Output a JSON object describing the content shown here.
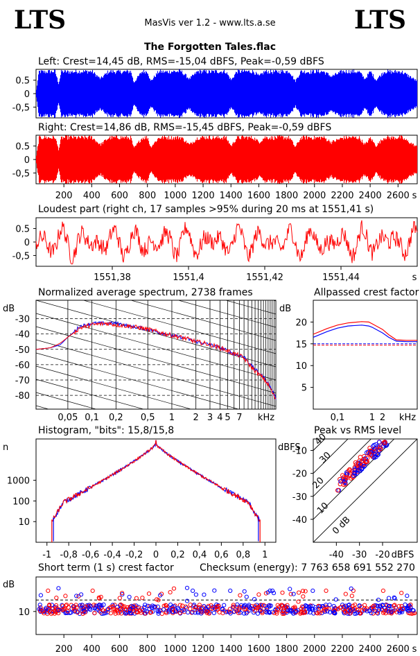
{
  "header": {
    "logo_left": "LTS",
    "logo_right": "LTS",
    "app_version": "MasVis ver 1.2 - www.lts.a.se",
    "file_title": "The Forgotten Tales.flac"
  },
  "colors": {
    "left": "#0000ff",
    "right": "#ff0000",
    "grid": "#000000"
  },
  "chart_data": [
    {
      "id": "left",
      "type": "area",
      "title": "Left: Crest=14,45 dB, RMS=-15,04 dBFS, Peak=-0,59 dBFS",
      "ylim": [
        -0.9,
        0.9
      ],
      "yticks": [
        "0.5",
        "0",
        "-0,5"
      ],
      "xlim": [
        0,
        2738
      ],
      "envelope_x": [
        0,
        20,
        60,
        100,
        135,
        160,
        180,
        240,
        300,
        400,
        460,
        520,
        600,
        680,
        700,
        760,
        800,
        820,
        880,
        920,
        980,
        1040,
        1100,
        1160,
        1200,
        1240,
        1300,
        1360,
        1400,
        1440,
        1500,
        1560,
        1600,
        1640,
        1700,
        1760,
        1820,
        1860,
        1900,
        1960,
        2000,
        2060,
        2120,
        2200,
        2260,
        2320,
        2360,
        2400,
        2440,
        2500,
        2560,
        2620,
        2680,
        2738
      ],
      "envelope_y": [
        0.15,
        0.9,
        0.88,
        0.9,
        0.9,
        0.4,
        0.9,
        0.88,
        0.9,
        0.9,
        0.6,
        0.9,
        0.88,
        0.9,
        0.45,
        0.9,
        0.9,
        0.5,
        0.9,
        0.88,
        0.9,
        0.9,
        0.6,
        0.9,
        0.9,
        0.88,
        0.9,
        0.9,
        0.55,
        0.9,
        0.9,
        0.9,
        0.7,
        0.9,
        0.88,
        0.9,
        0.9,
        0.5,
        0.9,
        0.88,
        0.9,
        0.9,
        0.7,
        0.9,
        0.9,
        0.88,
        0.6,
        0.9,
        0.55,
        0.9,
        0.88,
        0.9,
        0.7,
        0.5
      ]
    },
    {
      "id": "right",
      "type": "area",
      "title": "Right: Crest=14,86 dB, RMS=-15,45 dBFS, Peak=-0,59 dBFS",
      "ylim": [
        -0.9,
        0.9
      ],
      "yticks": [
        "0.5",
        "0",
        "-0,5"
      ],
      "xlim": [
        0,
        2738
      ],
      "xticks": [
        "200",
        "400",
        "600",
        "800",
        "1000",
        "1200",
        "1400",
        "1600",
        "1800",
        "2000",
        "2200",
        "2400",
        "2600",
        "s"
      ],
      "envelope_x": [
        0,
        20,
        60,
        100,
        135,
        160,
        180,
        240,
        300,
        400,
        460,
        520,
        600,
        680,
        700,
        760,
        800,
        820,
        880,
        920,
        980,
        1040,
        1100,
        1160,
        1200,
        1240,
        1300,
        1360,
        1400,
        1440,
        1500,
        1560,
        1600,
        1640,
        1700,
        1760,
        1820,
        1860,
        1900,
        1960,
        2000,
        2060,
        2120,
        2200,
        2260,
        2320,
        2360,
        2400,
        2440,
        2500,
        2560,
        2620,
        2680,
        2738
      ],
      "envelope_y": [
        0.15,
        0.88,
        0.9,
        0.88,
        0.9,
        0.4,
        0.88,
        0.9,
        0.88,
        0.9,
        0.6,
        0.88,
        0.9,
        0.88,
        0.45,
        0.88,
        0.9,
        0.5,
        0.88,
        0.9,
        0.88,
        0.9,
        0.6,
        0.88,
        0.9,
        0.9,
        0.88,
        0.9,
        0.55,
        0.88,
        0.9,
        0.88,
        0.7,
        0.9,
        0.88,
        0.9,
        0.88,
        0.5,
        0.88,
        0.9,
        0.88,
        0.9,
        0.7,
        0.88,
        0.9,
        0.88,
        0.6,
        0.88,
        0.55,
        0.9,
        0.88,
        0.9,
        0.7,
        0.5
      ]
    },
    {
      "id": "loudest",
      "type": "line",
      "title": "Loudest part (right ch, 17 samples >95% during 20 ms at 1551,41 s)",
      "ylim": [
        -0.9,
        0.9
      ],
      "yticks": [
        "0.5",
        "0",
        "-0,5"
      ],
      "xlim": [
        1551.36,
        1551.46
      ],
      "xticks": [
        "1551,38",
        "1551,4",
        "1551,42",
        "1551,44",
        "s"
      ]
    },
    {
      "id": "spectrum",
      "type": "line",
      "title": "Normalized average spectrum, 2738 frames",
      "ylabel": "dB",
      "yticks": [
        "-30",
        "-40",
        "-50",
        "-60",
        "-70",
        "-80"
      ],
      "xticks": [
        "0,05",
        "0,1",
        "0,2",
        "0,5",
        "1",
        "2",
        "3",
        "4",
        "5",
        "7",
        "kHz"
      ],
      "ylim": [
        -89,
        -18
      ],
      "freq_khz": [
        0.02,
        0.03,
        0.04,
        0.05,
        0.07,
        0.1,
        0.15,
        0.2,
        0.3,
        0.5,
        0.7,
        1,
        1.5,
        2,
        3,
        4,
        5,
        6,
        7,
        8,
        9,
        10,
        11,
        12,
        14,
        16,
        18,
        20
      ],
      "series": [
        {
          "name": "",
          "values": [
            -50,
            -49,
            -47,
            -42,
            -35,
            -33,
            -33,
            -33,
            -35,
            -37,
            -39,
            -41,
            -43,
            -45,
            -47,
            -49,
            -51,
            -53,
            -54,
            -55,
            -58,
            -61,
            -63,
            -65,
            -68,
            -72,
            -77,
            -82
          ]
        },
        {
          "name": "",
          "values": [
            -50,
            -49,
            -46,
            -42,
            -36,
            -34,
            -33,
            -34,
            -35,
            -37,
            -39,
            -41,
            -43,
            -45,
            -47,
            -49,
            -51,
            -53,
            -54,
            -56,
            -59,
            -62,
            -64,
            -66,
            -69,
            -73,
            -78,
            -83
          ]
        }
      ]
    },
    {
      "id": "crest",
      "type": "line",
      "title": "Allpassed crest factor",
      "ylabel": "dB",
      "yticks": [
        "20",
        "15",
        "10",
        "5"
      ],
      "xticks": [
        "0,1",
        "1",
        "2",
        "kHz"
      ],
      "ylim": [
        0,
        25
      ],
      "ref_level": 15,
      "freq_khz": [
        0.02,
        0.05,
        0.1,
        0.2,
        0.5,
        0.8,
        1,
        2,
        3,
        5,
        10,
        20
      ],
      "series": [
        {
          "name": "",
          "values": [
            16.5,
            17.8,
            18.6,
            19.1,
            19.3,
            19.1,
            18.8,
            17.5,
            16.5,
            15.6,
            15.5,
            15.5
          ]
        },
        {
          "name": "",
          "values": [
            17.2,
            18.5,
            19.3,
            19.8,
            20.1,
            20.0,
            19.6,
            18.3,
            17.1,
            15.9,
            15.8,
            15.8
          ]
        }
      ]
    },
    {
      "id": "histogram",
      "type": "line",
      "title": "Histogram, \"bits\": 15,8/15,8",
      "ylabel": "n",
      "yticks": [
        "1000",
        "100",
        "10"
      ],
      "xticks": [
        "-1",
        "-0,8",
        "-0,6",
        "-0,4",
        "-0,2",
        "0",
        "0,2",
        "0,4",
        "0,6",
        "0,8",
        "1"
      ],
      "xlim": [
        -1.1,
        1.1
      ],
      "ylim_log10": [
        0,
        5
      ]
    },
    {
      "id": "peak_vs_rms",
      "type": "scatter",
      "title": "Peak vs RMS level",
      "ylabel": "dBFS",
      "xlabel": "dBFS",
      "yticks": [
        "-10",
        "-20",
        "-30",
        "-40"
      ],
      "xticks": [
        "-40",
        "-30",
        "-20",
        "dBFS"
      ],
      "diag_labels": [
        "20",
        "10",
        "0 dB",
        "30",
        "40"
      ],
      "xlim": [
        -50,
        -5
      ],
      "ylim": [
        -50,
        -5
      ]
    },
    {
      "id": "short_term",
      "type": "scatter",
      "title": "Short term (1 s) crest factor",
      "checksum": "Checksum (energy):  7 763 658 691 552 270",
      "ylabel": "dB",
      "yticks": [
        "10"
      ],
      "xticks": [
        "200",
        "400",
        "600",
        "800",
        "1000",
        "1200",
        "1400",
        "1600",
        "1800",
        "2000",
        "2200",
        "2400",
        "2600",
        "s"
      ],
      "xlim": [
        0,
        2738
      ],
      "ylim": [
        0,
        25
      ],
      "ref_level": 15
    }
  ]
}
